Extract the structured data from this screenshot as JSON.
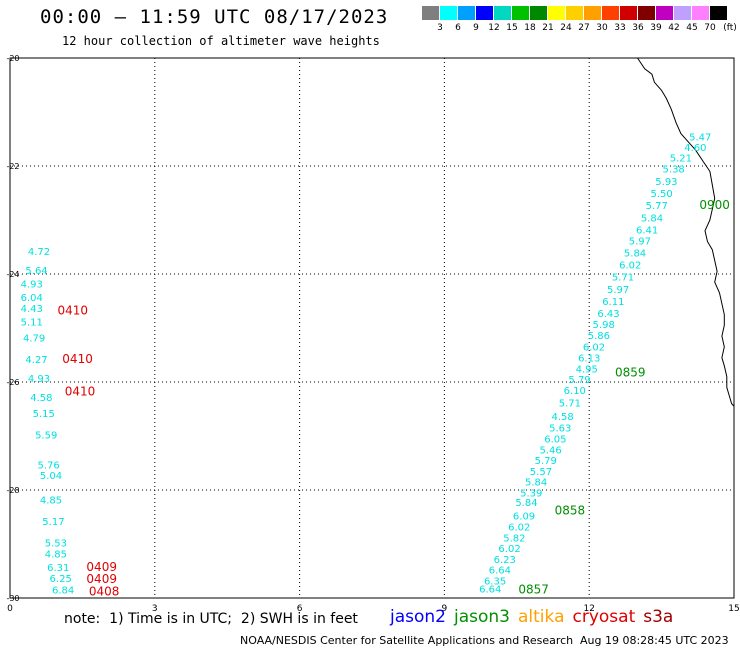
{
  "header": {
    "title": "00:00 – 11:59 UTC 08/17/2023",
    "subtitle": "12 hour collection of altimeter wave heights"
  },
  "colorbar": {
    "labels": [
      "3",
      "6",
      "9",
      "12",
      "15",
      "18",
      "21",
      "24",
      "27",
      "30",
      "33",
      "36",
      "39",
      "42",
      "45",
      "70"
    ],
    "unit": "(ft)",
    "colors": [
      "#7f7f7f",
      "#00ffff",
      "#00a0ff",
      "#0000ff",
      "#00d8c0",
      "#00c000",
      "#008800",
      "#ffff00",
      "#ffd000",
      "#ffa000",
      "#ff4000",
      "#d00000",
      "#800000",
      "#c000c0",
      "#c0a0ff",
      "#ff80ff",
      "#000000"
    ]
  },
  "footer": {
    "note": "note:  1) Time is in UTC;  2) SWH is in feet",
    "satellites": [
      {
        "name": "jason2",
        "color": "#0000ff"
      },
      {
        "name": "jason3",
        "color": "#009000"
      },
      {
        "name": "altika",
        "color": "#ffa000"
      },
      {
        "name": "cryosat",
        "color": "#e00000"
      },
      {
        "name": "s3a",
        "color": "#a00000"
      }
    ],
    "credit": "NOAA/NESDIS Center for Satellite Applications and Research",
    "timestamp": "Aug 19 08:28:45 UTC 2023"
  },
  "chart_data": {
    "type": "scatter",
    "xlim": [
      0,
      15
    ],
    "ylim": [
      -30,
      -20
    ],
    "xticks": [
      "0",
      "3",
      "6",
      "9",
      "12",
      "15"
    ],
    "yticks": [
      "-20",
      "-22",
      "-24",
      "-26",
      "-28",
      "-30"
    ],
    "grid": true,
    "wave_heights": [
      {
        "x": 14.3,
        "y": -21.53,
        "label": "5.47",
        "color": "#00e0e0"
      },
      {
        "x": 14.2,
        "y": -21.72,
        "label": "4.60",
        "color": "#00e0e0"
      },
      {
        "x": 13.9,
        "y": -21.92,
        "label": "5.21",
        "color": "#00e0e0"
      },
      {
        "x": 13.75,
        "y": -22.12,
        "label": "5.38",
        "color": "#00e0e0"
      },
      {
        "x": 13.6,
        "y": -22.35,
        "label": "5.93",
        "color": "#00e0e0"
      },
      {
        "x": 13.5,
        "y": -22.57,
        "label": "5.50",
        "color": "#00e0e0"
      },
      {
        "x": 13.4,
        "y": -22.8,
        "label": "5.77",
        "color": "#00e0e0"
      },
      {
        "x": 13.3,
        "y": -23.03,
        "label": "5.84",
        "color": "#00e0e0"
      },
      {
        "x": 13.2,
        "y": -23.25,
        "label": "6.41",
        "color": "#00e0e0"
      },
      {
        "x": 13.05,
        "y": -23.45,
        "label": "5.97",
        "color": "#00e0e0"
      },
      {
        "x": 12.95,
        "y": -23.68,
        "label": "5.84",
        "color": "#00e0e0"
      },
      {
        "x": 12.85,
        "y": -23.9,
        "label": "6.02",
        "color": "#00e0e0"
      },
      {
        "x": 12.7,
        "y": -24.12,
        "label": "5.71",
        "color": "#00e0e0"
      },
      {
        "x": 12.6,
        "y": -24.35,
        "label": "5.97",
        "color": "#00e0e0"
      },
      {
        "x": 12.5,
        "y": -24.57,
        "label": "6.11",
        "color": "#00e0e0"
      },
      {
        "x": 12.4,
        "y": -24.8,
        "label": "6.43",
        "color": "#00e0e0"
      },
      {
        "x": 12.3,
        "y": -25.0,
        "label": "5.98",
        "color": "#00e0e0"
      },
      {
        "x": 12.2,
        "y": -25.2,
        "label": "5.86",
        "color": "#00e0e0"
      },
      {
        "x": 12.1,
        "y": -25.42,
        "label": "6.02",
        "color": "#00e0e0"
      },
      {
        "x": 12.0,
        "y": -25.62,
        "label": "6.13",
        "color": "#00e0e0"
      },
      {
        "x": 11.95,
        "y": -25.82,
        "label": "4.95",
        "color": "#00e0e0"
      },
      {
        "x": 11.8,
        "y": -26.02,
        "label": "5.79",
        "color": "#00e0e0"
      },
      {
        "x": 11.7,
        "y": -26.22,
        "label": "6.10",
        "color": "#00e0e0"
      },
      {
        "x": 11.6,
        "y": -26.45,
        "label": "5.71",
        "color": "#00e0e0"
      },
      {
        "x": 11.45,
        "y": -26.7,
        "label": "4.58",
        "color": "#00e0e0"
      },
      {
        "x": 11.4,
        "y": -26.92,
        "label": "5.63",
        "color": "#00e0e0"
      },
      {
        "x": 11.3,
        "y": -27.12,
        "label": "6.05",
        "color": "#00e0e0"
      },
      {
        "x": 11.2,
        "y": -27.32,
        "label": "5.46",
        "color": "#00e0e0"
      },
      {
        "x": 11.1,
        "y": -27.52,
        "label": "5.79",
        "color": "#00e0e0"
      },
      {
        "x": 11.0,
        "y": -27.72,
        "label": "5.57",
        "color": "#00e0e0"
      },
      {
        "x": 10.9,
        "y": -27.92,
        "label": "5.84",
        "color": "#00e0e0"
      },
      {
        "x": 10.8,
        "y": -28.12,
        "label": "5.39",
        "color": "#00e0e0"
      },
      {
        "x": 10.7,
        "y": -28.3,
        "label": "5.84",
        "color": "#00e0e0"
      },
      {
        "x": 10.65,
        "y": -28.55,
        "label": "6.09",
        "color": "#00e0e0"
      },
      {
        "x": 10.55,
        "y": -28.75,
        "label": "6.02",
        "color": "#00e0e0"
      },
      {
        "x": 10.45,
        "y": -28.95,
        "label": "5.82",
        "color": "#00e0e0"
      },
      {
        "x": 10.35,
        "y": -29.15,
        "label": "6.02",
        "color": "#00e0e0"
      },
      {
        "x": 10.25,
        "y": -29.35,
        "label": "6.23",
        "color": "#00e0e0"
      },
      {
        "x": 10.15,
        "y": -29.55,
        "label": "6.64",
        "color": "#00e0e0"
      },
      {
        "x": 10.05,
        "y": -29.75,
        "label": "6.35",
        "color": "#00e0e0"
      },
      {
        "x": 9.95,
        "y": -29.9,
        "label": "6.64",
        "color": "#00e0e0"
      },
      {
        "x": 0.6,
        "y": -23.65,
        "label": "4.72",
        "color": "#00e0e0"
      },
      {
        "x": 0.55,
        "y": -24.0,
        "label": "5.64",
        "color": "#00e0e0"
      },
      {
        "x": 0.45,
        "y": -24.25,
        "label": "4.93",
        "color": "#00e0e0"
      },
      {
        "x": 0.45,
        "y": -24.5,
        "label": "6.04",
        "color": "#00e0e0"
      },
      {
        "x": 0.45,
        "y": -24.7,
        "label": "4.43",
        "color": "#00e0e0"
      },
      {
        "x": 0.45,
        "y": -24.95,
        "label": "5.11",
        "color": "#00e0e0"
      },
      {
        "x": 0.5,
        "y": -25.25,
        "label": "4.79",
        "color": "#00e0e0"
      },
      {
        "x": 0.55,
        "y": -25.65,
        "label": "4.27",
        "color": "#00e0e0"
      },
      {
        "x": 0.6,
        "y": -26.0,
        "label": "4.93",
        "color": "#00e0e0"
      },
      {
        "x": 0.65,
        "y": -26.35,
        "label": "4.58",
        "color": "#00e0e0"
      },
      {
        "x": 0.7,
        "y": -26.65,
        "label": "5.15",
        "color": "#00e0e0"
      },
      {
        "x": 0.75,
        "y": -27.05,
        "label": "5.59",
        "color": "#00e0e0"
      },
      {
        "x": 0.8,
        "y": -27.6,
        "label": "5.76",
        "color": "#00e0e0"
      },
      {
        "x": 0.85,
        "y": -27.8,
        "label": "5.04",
        "color": "#00e0e0"
      },
      {
        "x": 0.85,
        "y": -28.25,
        "label": "4.85",
        "color": "#00e0e0"
      },
      {
        "x": 0.9,
        "y": -28.65,
        "label": "5.17",
        "color": "#00e0e0"
      },
      {
        "x": 0.95,
        "y": -29.05,
        "label": "5.53",
        "color": "#00e0e0"
      },
      {
        "x": 0.95,
        "y": -29.25,
        "label": "4.85",
        "color": "#00e0e0"
      },
      {
        "x": 1.0,
        "y": -29.5,
        "label": "6.31",
        "color": "#00e0e0"
      },
      {
        "x": 1.05,
        "y": -29.7,
        "label": "6.25",
        "color": "#00e0e0"
      },
      {
        "x": 1.1,
        "y": -29.92,
        "label": "6.84",
        "color": "#00e0e0"
      }
    ],
    "pass_times": [
      {
        "x": 14.6,
        "y": -22.8,
        "label": "0900",
        "color": "#009000"
      },
      {
        "x": 12.85,
        "y": -25.9,
        "label": "0859",
        "color": "#009000"
      },
      {
        "x": 11.6,
        "y": -28.45,
        "label": "0858",
        "color": "#009000"
      },
      {
        "x": 10.85,
        "y": -29.92,
        "label": "0857",
        "color": "#009000"
      },
      {
        "x": 1.3,
        "y": -24.75,
        "label": "0410",
        "color": "#e00000"
      },
      {
        "x": 1.4,
        "y": -25.65,
        "label": "0410",
        "color": "#e00000"
      },
      {
        "x": 1.45,
        "y": -26.25,
        "label": "0410",
        "color": "#e00000"
      },
      {
        "x": 1.9,
        "y": -29.5,
        "label": "0409",
        "color": "#e00000"
      },
      {
        "x": 1.9,
        "y": -29.72,
        "label": "0409",
        "color": "#e00000"
      },
      {
        "x": 1.95,
        "y": -29.95,
        "label": "0408",
        "color": "#e00000"
      }
    ],
    "coastline": [
      [
        13.0,
        -20.0
      ],
      [
        13.15,
        -20.2
      ],
      [
        13.3,
        -20.3
      ],
      [
        13.35,
        -20.45
      ],
      [
        13.5,
        -20.6
      ],
      [
        13.6,
        -20.75
      ],
      [
        13.7,
        -20.95
      ],
      [
        13.8,
        -21.2
      ],
      [
        13.9,
        -21.4
      ],
      [
        14.05,
        -21.55
      ],
      [
        14.2,
        -21.7
      ],
      [
        14.35,
        -21.9
      ],
      [
        14.5,
        -22.1
      ],
      [
        14.55,
        -22.35
      ],
      [
        14.6,
        -22.6
      ],
      [
        14.55,
        -22.8
      ],
      [
        14.5,
        -23.0
      ],
      [
        14.4,
        -23.2
      ],
      [
        14.45,
        -23.4
      ],
      [
        14.55,
        -23.55
      ],
      [
        14.6,
        -23.75
      ],
      [
        14.65,
        -23.95
      ],
      [
        14.6,
        -24.15
      ],
      [
        14.7,
        -24.35
      ],
      [
        14.75,
        -24.55
      ],
      [
        14.8,
        -24.75
      ],
      [
        14.8,
        -24.95
      ],
      [
        14.75,
        -25.15
      ],
      [
        14.8,
        -25.35
      ],
      [
        14.75,
        -25.55
      ],
      [
        14.8,
        -25.7
      ],
      [
        14.85,
        -25.9
      ],
      [
        14.85,
        -26.1
      ],
      [
        14.9,
        -26.25
      ],
      [
        14.95,
        -26.4
      ],
      [
        15.0,
        -26.45
      ]
    ]
  }
}
